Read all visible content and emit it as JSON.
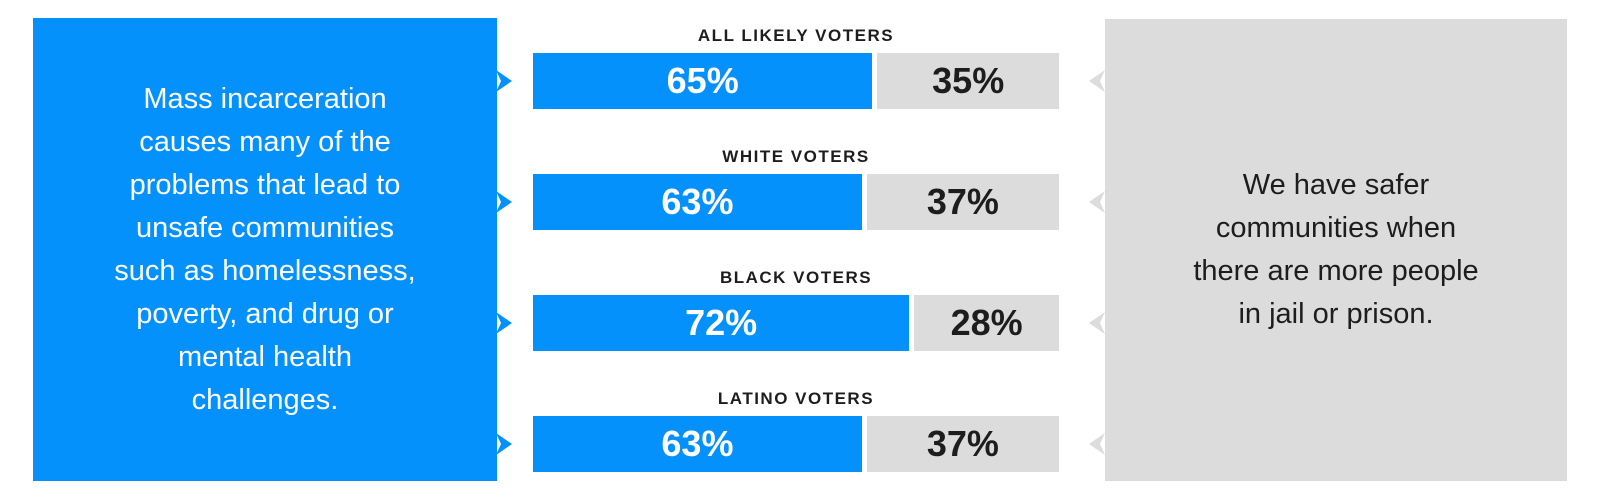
{
  "colors": {
    "agree_blue": "#0591FB",
    "disagree_gray": "#DCDCDC",
    "text_dark": "#1D1D1D",
    "text_light": "#FFFFFF",
    "background": "#FFFFFF"
  },
  "left_panel": {
    "text": "Mass incarceration\ncauses many of the\nproblems that lead to\nunsafe communities\nsuch as homelessness,\npoverty, and drug or\nmental health\nchallenges."
  },
  "right_panel": {
    "text": "We have safer\ncommunities when\nthere are more people\nin jail or prison."
  },
  "chart_data": {
    "type": "bar",
    "orientation": "horizontal",
    "stacked": true,
    "title": "",
    "xlabel": "",
    "ylabel": "",
    "xlim": [
      0,
      100
    ],
    "grid": false,
    "legend_position": "none",
    "categories": [
      "ALL LIKELY VOTERS",
      "WHITE VOTERS",
      "BLACK VOTERS",
      "LATINO VOTERS"
    ],
    "series": [
      {
        "name": "left-statement-share",
        "values": [
          65,
          63,
          72,
          63
        ],
        "color": "#0591FB"
      },
      {
        "name": "right-statement-share",
        "values": [
          35,
          37,
          28,
          37
        ],
        "color": "#DCDCDC"
      }
    ],
    "value_labels": [
      [
        "65%",
        "35%"
      ],
      [
        "63%",
        "37%"
      ],
      [
        "72%",
        "28%"
      ],
      [
        "63%",
        "37%"
      ]
    ]
  }
}
